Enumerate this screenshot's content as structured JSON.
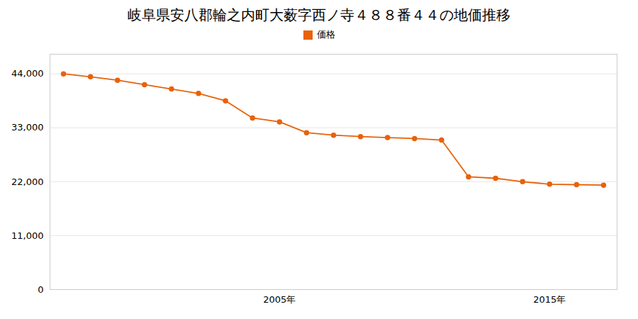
{
  "chart_data": {
    "type": "line",
    "title": "岐阜県安八郡輪之内町大薮字西ノ寺４８８番４４の地価推移",
    "x": [
      1997,
      1998,
      1999,
      2000,
      2001,
      2002,
      2003,
      2004,
      2005,
      2006,
      2007,
      2008,
      2009,
      2010,
      2011,
      2012,
      2013,
      2014,
      2015,
      2016,
      2017
    ],
    "series": [
      {
        "name": "価格",
        "color": "#e8620a",
        "marker": "circle",
        "values": [
          44000,
          43400,
          42700,
          41800,
          40900,
          40000,
          38500,
          35000,
          34200,
          32000,
          31500,
          31200,
          31000,
          30800,
          30500,
          23000,
          22700,
          22000,
          21500,
          21400,
          21300
        ]
      }
    ],
    "xlim": [
      1996.5,
      2017.5
    ],
    "xticks": [
      {
        "value": 2005,
        "label": "2005年"
      },
      {
        "value": 2015,
        "label": "2015年"
      }
    ],
    "ylim": [
      0,
      48000
    ],
    "yticks": [
      0,
      {
        "value": 11000,
        "label": "11,000"
      },
      {
        "value": 22000,
        "label": "22,000"
      },
      {
        "value": 33000,
        "label": "33,000"
      },
      {
        "value": 44000,
        "label": "44,000"
      }
    ],
    "grid": true,
    "legend": "top"
  }
}
